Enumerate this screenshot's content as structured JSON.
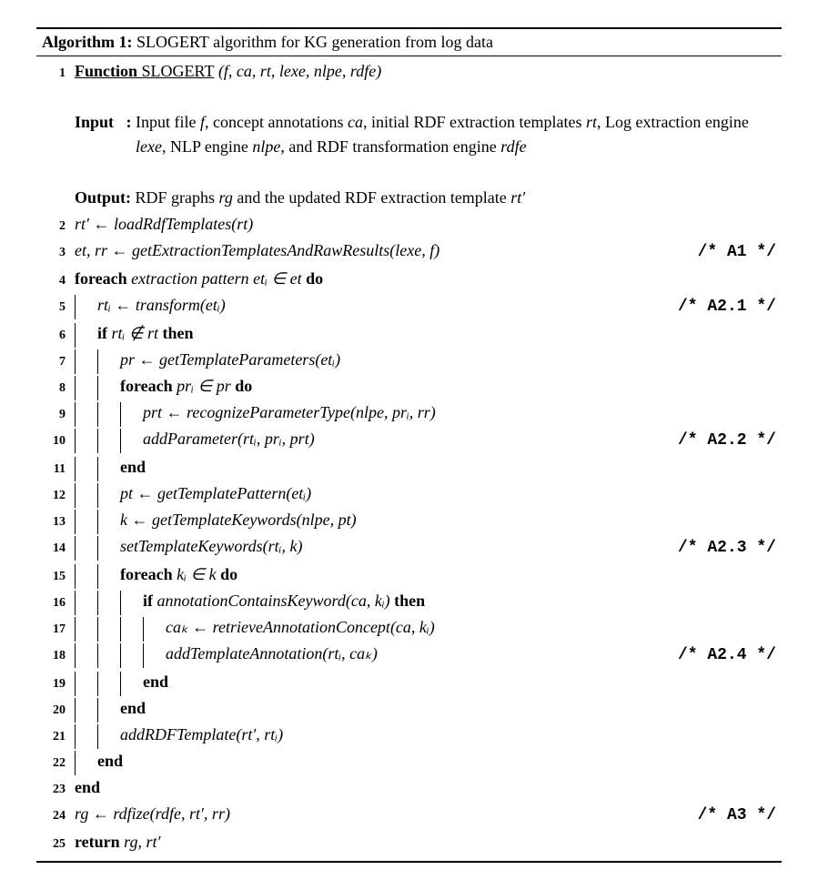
{
  "title_prefix": "Algorithm 1:",
  "title_text": " SLOGERT algorithm for KG generation from log data",
  "func_kw": "Function",
  "func_name": " SLOGERT",
  "func_args": " (f, ca, rt, lexe, nlpe, rdfe)",
  "input_label": "Input   : ",
  "input_text": "Input file f, concept annotations ca, initial RDF extraction templates rt, Log extraction engine lexe, NLP engine nlpe, and RDF transformation engine rdfe",
  "output_label": "Output: ",
  "output_text": "RDF graphs rg and the updated RDF extraction template rt′",
  "l2": "rt′ ← loadRdfTemplates(rt)",
  "l3": "et, rr ← getExtractionTemplatesAndRawResults(lexe, f)",
  "c3": "/* A1 */",
  "l4a": "foreach",
  "l4b": " extraction pattern etᵢ ∈ et ",
  "l4c": "do",
  "l5": "rtᵢ ← transform(etᵢ)",
  "c5": "/* A2.1 */",
  "l6a": "if",
  "l6b": " rtᵢ ∉ rt ",
  "l6c": "then",
  "l7": "pr ← getTemplateParameters(etᵢ)",
  "l8a": "foreach",
  "l8b": " prᵢ ∈ pr ",
  "l8c": "do",
  "l9": "prt ← recognizeParameterType(nlpe, prᵢ, rr)",
  "l10": "addParameter(rtᵢ, prᵢ, prt)",
  "c10": "/* A2.2 */",
  "l11": "end",
  "l12": "pt ← getTemplatePattern(etᵢ)",
  "l13": "k ← getTemplateKeywords(nlpe, pt)",
  "l14": "setTemplateKeywords(rtᵢ, k)",
  "c14": "/* A2.3 */",
  "l15a": "foreach",
  "l15b": " kᵢ ∈ k ",
  "l15c": "do",
  "l16a": "if",
  "l16b": " annotationContainsKeyword(ca, kᵢ) ",
  "l16c": "then",
  "l17": "caₖ ← retrieveAnnotationConcept(ca, kᵢ)",
  "l18": "addTemplateAnnotation(rtᵢ, caₖ)",
  "c18": "/* A2.4 */",
  "l19": "end",
  "l20": "end",
  "l21": "addRDFTemplate(rt′, rtᵢ)",
  "l22": "end",
  "l23": "end",
  "l24": "rg ← rdfize(rdfe, rt′, rr)",
  "c24": "/* A3 */",
  "l25a": "return",
  "l25b": " rg, rt′",
  "ln": {
    "1": "1",
    "2": "2",
    "3": "3",
    "4": "4",
    "5": "5",
    "6": "6",
    "7": "7",
    "8": "8",
    "9": "9",
    "10": "10",
    "11": "11",
    "12": "12",
    "13": "13",
    "14": "14",
    "15": "15",
    "16": "16",
    "17": "17",
    "18": "18",
    "19": "19",
    "20": "20",
    "21": "21",
    "22": "22",
    "23": "23",
    "24": "24",
    "25": "25"
  }
}
